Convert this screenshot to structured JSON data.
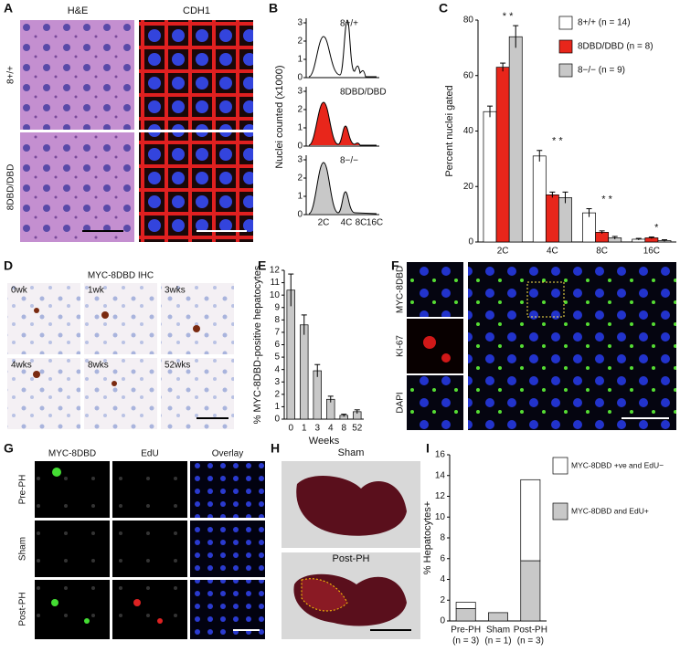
{
  "panels": {
    "A": {
      "letter": "A",
      "cols": [
        "H&E",
        "CDH1"
      ],
      "rows": [
        "8+/+",
        "8DBD/DBD"
      ]
    },
    "B": {
      "letter": "B",
      "labels": [
        "8+/+",
        "8DBD/DBD",
        "8−/−"
      ],
      "y_label": "Nuclei counted (x1000)",
      "yticks": [
        0,
        1,
        2,
        3
      ],
      "x_labels": [
        "2C",
        "4C",
        "8C",
        "16C"
      ]
    },
    "D": {
      "letter": "D",
      "title": "MYC-8DBD IHC",
      "tiles": [
        "0wk",
        "1wk",
        "3wks",
        "4wks",
        "8wks",
        "52wks"
      ]
    },
    "F": {
      "letter": "F",
      "labels": [
        "MYC-8DBD",
        "KI-67",
        "DAPI"
      ]
    },
    "G": {
      "letter": "G",
      "cols": [
        "MYC-8DBD",
        "EdU",
        "Overlay"
      ],
      "rows": [
        "Pre-PH",
        "Sham",
        "Post-PH"
      ]
    },
    "H": {
      "letter": "H",
      "labels": [
        "Sham",
        "Post-PH"
      ]
    }
  },
  "chart_data": [
    {
      "type": "bar",
      "letter": "C",
      "y_label": "Percent nuclei gated",
      "categories": [
        "2C",
        "4C",
        "8C",
        "16C"
      ],
      "annotations": [
        "* *",
        "* *",
        "* *",
        "*"
      ],
      "series": [
        {
          "name": "8+/+ (n = 14)",
          "color": "#ffffff",
          "values": [
            47,
            31,
            10.5,
            1
          ],
          "errors": [
            2,
            2,
            1.5,
            0.3
          ]
        },
        {
          "name": "8DBD/DBD (n = 8)",
          "color": "#e8261b",
          "values": [
            63,
            17,
            3.5,
            1.5
          ],
          "errors": [
            1.5,
            1,
            0.5,
            0.3
          ]
        },
        {
          "name": "8−/− (n = 9)",
          "color": "#c8c8c8",
          "values": [
            74,
            16,
            1.5,
            0.5
          ],
          "errors": [
            4,
            2,
            0.5,
            0.3
          ]
        }
      ],
      "ylim": [
        0,
        80
      ],
      "yticks": [
        0,
        20,
        40,
        60,
        80
      ]
    },
    {
      "type": "bar",
      "letter": "E",
      "y_label": "% MYC-8DBD-positive hepatocytes",
      "x_label": "Weeks",
      "categories": [
        "0",
        "1",
        "3",
        "4",
        "8",
        "52"
      ],
      "values": [
        10.4,
        7.6,
        3.9,
        1.6,
        0.3,
        0.6
      ],
      "errors": [
        1.3,
        0.8,
        0.5,
        0.25,
        0.1,
        0.15
      ],
      "color": "#c8c8c8",
      "ylim": [
        0,
        12
      ],
      "yticks": [
        0,
        1,
        2,
        3,
        4,
        5,
        6,
        7,
        8,
        9,
        10,
        11,
        12
      ]
    },
    {
      "type": "stacked_bar",
      "letter": "I",
      "y_label": "% Hepatocytes+",
      "categories": [
        "Pre-PH",
        "Sham",
        "Post-PH"
      ],
      "category_notes": [
        "(n = 3)",
        "(n = 1)",
        "(n = 3)"
      ],
      "series": [
        {
          "name": "MYC-8DBD and EdU+",
          "color": "#c8c8c8",
          "values": [
            1.2,
            0.8,
            5.8
          ]
        },
        {
          "name": "MYC-8DBD +ve and EdU−",
          "color": "#ffffff",
          "values": [
            0.6,
            0,
            7.8
          ]
        }
      ],
      "ylim": [
        0,
        16
      ],
      "yticks": [
        0,
        2,
        4,
        6,
        8,
        10,
        12,
        14,
        16
      ]
    }
  ]
}
